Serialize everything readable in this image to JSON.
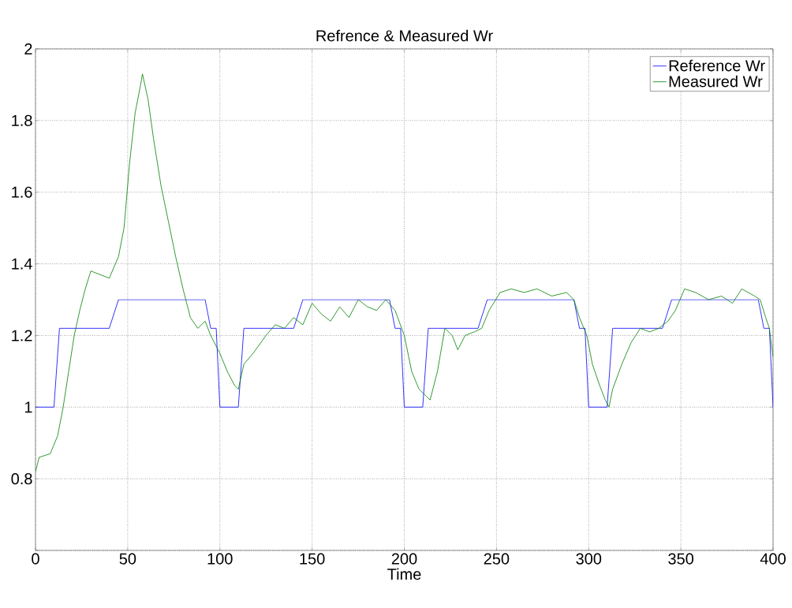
{
  "chart_data": {
    "type": "line",
    "title": "Refrence & Measured Wr",
    "xlabel": "Time",
    "xlim": [
      0,
      400
    ],
    "ylim": [
      0.6,
      2
    ],
    "xticks": [
      0,
      50,
      100,
      150,
      200,
      250,
      300,
      350,
      400
    ],
    "yticks": [
      {
        "value": 0.6,
        "label": null
      },
      0.8,
      1,
      1.2,
      1.4,
      1.6,
      1.8,
      2
    ],
    "grid": true,
    "legend": "top right",
    "line_style": "solid",
    "marker": "none",
    "series": [
      {
        "name": "Reference Wr",
        "color": "#0000ff",
        "x": [
          0,
          10,
          13,
          40,
          45,
          92,
          95,
          98,
          100,
          110,
          113,
          140,
          145,
          192,
          195,
          198,
          200,
          210,
          213,
          240,
          245,
          292,
          295,
          298,
          300,
          310,
          313,
          340,
          345,
          392,
          395,
          398,
          400
        ],
        "values": [
          1,
          1,
          1.22,
          1.22,
          1.3,
          1.3,
          1.22,
          1.22,
          1,
          1,
          1.22,
          1.22,
          1.3,
          1.3,
          1.22,
          1.22,
          1,
          1,
          1.22,
          1.22,
          1.3,
          1.3,
          1.22,
          1.22,
          1,
          1,
          1.22,
          1.22,
          1.3,
          1.3,
          1.22,
          1.22,
          1
        ]
      },
      {
        "name": "Measured Wr",
        "color": "#008000",
        "x": [
          0,
          2,
          8,
          12,
          15,
          18,
          21,
          24,
          27,
          30,
          35,
          40,
          45,
          48,
          51,
          54,
          57,
          58,
          61,
          64,
          68,
          72,
          76,
          80,
          84,
          88,
          92,
          95,
          100,
          104,
          108,
          110,
          113,
          118,
          125,
          130,
          135,
          140,
          145,
          150,
          155,
          160,
          165,
          170,
          175,
          180,
          185,
          190,
          195,
          200,
          204,
          208,
          212,
          214,
          218,
          222,
          226,
          229,
          233,
          238,
          242,
          246,
          252,
          258,
          265,
          272,
          280,
          288,
          292,
          295,
          299,
          302,
          306,
          309,
          311,
          313,
          318,
          323,
          328,
          333,
          338,
          343,
          347,
          352,
          358,
          365,
          372,
          378,
          383,
          390,
          393,
          396,
          398,
          400
        ],
        "values": [
          0.82,
          0.86,
          0.87,
          0.92,
          1.0,
          1.1,
          1.2,
          1.27,
          1.33,
          1.38,
          1.37,
          1.36,
          1.42,
          1.5,
          1.68,
          1.82,
          1.9,
          1.93,
          1.86,
          1.75,
          1.62,
          1.52,
          1.42,
          1.33,
          1.25,
          1.22,
          1.24,
          1.2,
          1.15,
          1.1,
          1.06,
          1.05,
          1.12,
          1.15,
          1.2,
          1.23,
          1.22,
          1.25,
          1.23,
          1.29,
          1.26,
          1.24,
          1.28,
          1.25,
          1.3,
          1.28,
          1.27,
          1.3,
          1.27,
          1.2,
          1.1,
          1.05,
          1.03,
          1.02,
          1.1,
          1.22,
          1.2,
          1.16,
          1.2,
          1.21,
          1.22,
          1.27,
          1.32,
          1.33,
          1.32,
          1.33,
          1.31,
          1.32,
          1.3,
          1.25,
          1.2,
          1.12,
          1.06,
          1.02,
          1.0,
          1.05,
          1.12,
          1.18,
          1.22,
          1.21,
          1.22,
          1.24,
          1.27,
          1.33,
          1.32,
          1.3,
          1.31,
          1.29,
          1.33,
          1.31,
          1.3,
          1.25,
          1.22,
          1.14
        ]
      }
    ]
  }
}
